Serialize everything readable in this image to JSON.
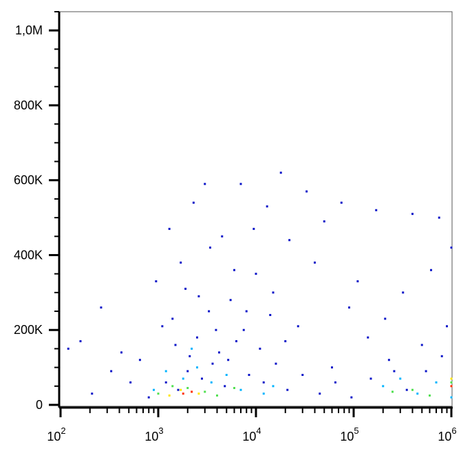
{
  "chart_data": {
    "type": "scatter",
    "xlog": true,
    "xlim": [
      100,
      1000000
    ],
    "xticks": [
      {
        "value": 100,
        "label": "10",
        "exponent": "2"
      },
      {
        "value": 1000,
        "label": "10",
        "exponent": "3"
      },
      {
        "value": 10000,
        "label": "10",
        "exponent": "4"
      },
      {
        "value": 100000,
        "label": "10",
        "exponent": "5"
      },
      {
        "value": 1000000,
        "label": "10",
        "exponent": "6"
      }
    ],
    "ylim": [
      0,
      1050000
    ],
    "yticks": [
      0,
      {
        "value": 200000,
        "label": "200K"
      },
      {
        "value": 400000,
        "label": "400K"
      },
      {
        "value": 600000,
        "label": "600K"
      },
      {
        "value": 800000,
        "label": "800K"
      },
      {
        "value": 1000000,
        "label": "1,0M"
      }
    ],
    "series": [
      {
        "color": "#0a14c8",
        "x": [
          120,
          160,
          210,
          260,
          330,
          420,
          520,
          650,
          800,
          950,
          1100,
          1300,
          1500,
          1700,
          2000,
          2300,
          2600,
          3000,
          3400,
          3900,
          4500,
          5200,
          6000,
          7000,
          8000,
          9500,
          11000,
          13000,
          15000,
          18000,
          22000,
          27000,
          33000,
          40000,
          50000,
          60000,
          75000,
          90000,
          110000,
          140000,
          170000,
          210000,
          260000,
          320000,
          400000,
          500000,
          620000,
          750000,
          900000,
          1000000,
          1200,
          1600,
          2100,
          2800,
          3600,
          4800,
          6300,
          8500,
          12000,
          16000,
          21000,
          30000,
          45000,
          65000,
          95000,
          150000,
          230000,
          350000,
          550000,
          800000,
          1400,
          1900,
          2500,
          3300,
          4200,
          5500,
          7500,
          10000,
          14000,
          20000
        ],
        "values": [
          150000,
          170000,
          30000,
          260000,
          90000,
          140000,
          60000,
          120000,
          20000,
          330000,
          210000,
          470000,
          160000,
          380000,
          90000,
          540000,
          290000,
          590000,
          420000,
          200000,
          450000,
          120000,
          360000,
          590000,
          250000,
          470000,
          150000,
          530000,
          300000,
          620000,
          440000,
          210000,
          570000,
          380000,
          490000,
          100000,
          540000,
          260000,
          330000,
          180000,
          520000,
          230000,
          90000,
          300000,
          510000,
          160000,
          360000,
          500000,
          210000,
          420000,
          60000,
          40000,
          130000,
          70000,
          110000,
          50000,
          170000,
          80000,
          60000,
          110000,
          40000,
          80000,
          30000,
          60000,
          20000,
          70000,
          120000,
          40000,
          90000,
          130000,
          230000,
          310000,
          180000,
          250000,
          140000,
          280000,
          200000,
          350000,
          240000,
          170000
        ]
      },
      {
        "color": "#00b4ff",
        "x": [
          900,
          1200,
          1800,
          2500,
          3500,
          5000,
          7000,
          12000,
          200000,
          300000,
          450000,
          700000,
          1000000,
          2200,
          15000
        ],
        "values": [
          40000,
          90000,
          70000,
          100000,
          60000,
          80000,
          40000,
          30000,
          50000,
          70000,
          30000,
          60000,
          20000,
          150000,
          50000
        ]
      },
      {
        "color": "#50e050",
        "x": [
          1000,
          1400,
          2000,
          3000,
          4000,
          6000,
          250000,
          400000,
          600000,
          1000000
        ],
        "values": [
          30000,
          50000,
          45000,
          35000,
          25000,
          45000,
          35000,
          40000,
          25000,
          60000
        ]
      },
      {
        "color": "#ffe600",
        "x": [
          1300,
          1700,
          2600,
          1000000
        ],
        "values": [
          25000,
          40000,
          30000,
          70000
        ]
      },
      {
        "color": "#ff3000",
        "x": [
          1800,
          2200,
          1000000
        ],
        "values": [
          30000,
          35000,
          50000
        ]
      }
    ]
  }
}
